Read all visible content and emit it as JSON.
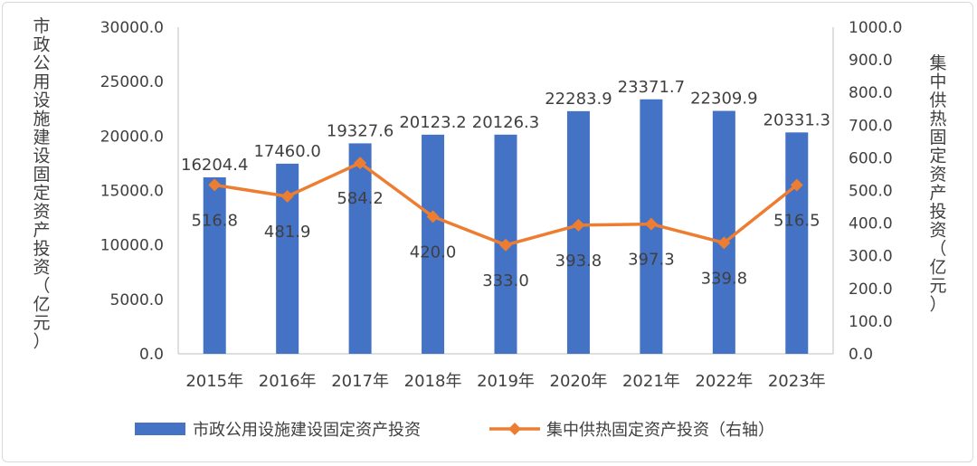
{
  "chart_data": {
    "type": "bar",
    "categories": [
      "2015年",
      "2016年",
      "2017年",
      "2018年",
      "2019年",
      "2020年",
      "2021年",
      "2022年",
      "2023年"
    ],
    "series": [
      {
        "name": "市政公用设施建设固定资产投资",
        "type": "bar",
        "axis": "left",
        "color": "#4472c4",
        "values": [
          16204.4,
          17460.0,
          19327.6,
          20123.2,
          20126.3,
          22283.9,
          23371.7,
          22309.9,
          20331.3
        ],
        "labels": [
          "16204.4",
          "17460.0",
          "19327.6",
          "20123.2",
          "20126.3",
          "22283.9",
          "23371.7",
          "22309.9",
          "20331.3"
        ]
      },
      {
        "name": "集中供热固定资产投资（右轴）",
        "type": "line",
        "axis": "right",
        "color": "#ed7d31",
        "marker": "diamond",
        "values": [
          516.8,
          481.9,
          584.2,
          420.0,
          333.0,
          393.8,
          397.3,
          339.8,
          516.5
        ],
        "labels": [
          "516.8",
          "481.9",
          "584.2",
          "420.0",
          "333.0",
          "393.8",
          "397.3",
          "339.8",
          "516.5"
        ]
      }
    ],
    "ylabel_left": "市政公用设施建设固定资产投资（亿元）",
    "ylabel_right": "集中供热固定资产投资（亿元）",
    "ylim_left": [
      0,
      30000
    ],
    "ylim_right": [
      0,
      1000
    ],
    "yticks_left": [
      "0.0",
      "5000.0",
      "10000.0",
      "15000.0",
      "20000.0",
      "25000.0",
      "30000.0"
    ],
    "yticks_right": [
      "0.0",
      "100.0",
      "200.0",
      "300.0",
      "400.0",
      "500.0",
      "600.0",
      "700.0",
      "800.0",
      "900.0",
      "1000.0"
    ],
    "grid": false,
    "legend_position": "bottom"
  }
}
